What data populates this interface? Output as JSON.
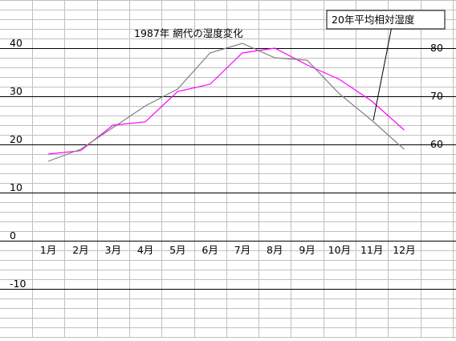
{
  "chart_data": {
    "type": "line",
    "title": "1987年  網代の湿度変化",
    "categories": [
      "1月",
      "2月",
      "3月",
      "4月",
      "5月",
      "6月",
      "7月",
      "8月",
      "9月",
      "10月",
      "11月",
      "12月"
    ],
    "y_left": {
      "ticks": [
        40,
        30,
        20,
        10,
        0,
        -10
      ],
      "range": [
        -10,
        40
      ]
    },
    "y_right": {
      "ticks": [
        80,
        70,
        60
      ],
      "range": [
        60,
        80
      ]
    },
    "series": [
      {
        "axis": "right",
        "color": "#ff00ff",
        "values": [
          58,
          58.7,
          64,
          64.7,
          71,
          72.5,
          79,
          80,
          76.5,
          73.5,
          69,
          63
        ]
      },
      {
        "axis": "right",
        "color": "#808080",
        "values": [
          56.5,
          59,
          63.5,
          68,
          71.5,
          79,
          81,
          78,
          77.5,
          70.5,
          65,
          59
        ]
      }
    ],
    "annotation": {
      "text": "20年平均相対湿度",
      "points_to_series": 1
    },
    "grid": true,
    "colors": {
      "grid_major": "#000000",
      "grid_minor": "#c0c0c0",
      "background": "#ffffff"
    }
  }
}
